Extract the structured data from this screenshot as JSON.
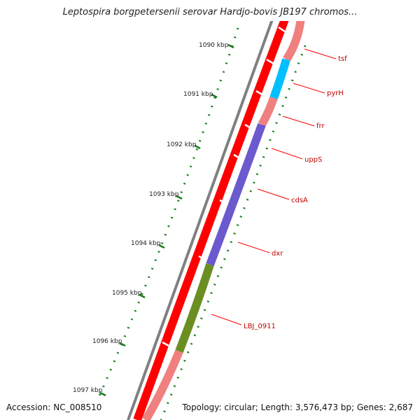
{
  "title": "Leptospira borgpetersenii serovar Hardjo-bovis JB197 chromos...",
  "footer": {
    "accession": "Accession: NC_008510",
    "summary": "Topology: circular; Length: 3,576,473 bp; Genes: 2,687"
  },
  "ticks": [
    "1090 kbp",
    "1091 kbp",
    "1092 kbp",
    "1093 kbp",
    "1094 kbp",
    "1095 kbp",
    "1096 kbp",
    "1097 kbp"
  ],
  "genes": [
    "tsf",
    "pyrH",
    "frr",
    "uppS",
    "cdsA",
    "dxr",
    "LBJ_0911"
  ],
  "colors": {
    "forward_cds": "#ff0000",
    "reverse_default": "#f08080",
    "pyrH": "#00bfff",
    "cdsA_dxr": "#6a5acd",
    "LBJ_0911": "#6b8e23",
    "backbone": "#808080",
    "gc_ticks": "#1a7a1a",
    "label": "#c00000"
  }
}
